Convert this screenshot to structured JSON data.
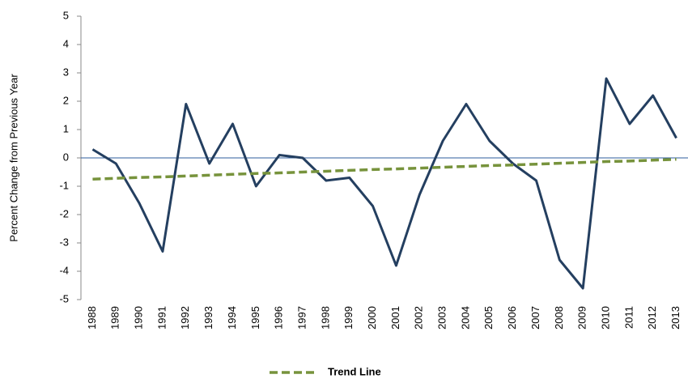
{
  "chart_data": {
    "type": "line",
    "y_label": "Percent Change from Previous Year",
    "categories": [
      "1988",
      "1989",
      "1990",
      "1991",
      "1992",
      "1993",
      "1994",
      "1995",
      "1996",
      "1997",
      "1998",
      "1999",
      "2000",
      "2001",
      "2002",
      "2003",
      "2004",
      "2005",
      "2006",
      "2007",
      "2008",
      "2009",
      "2010",
      "2011",
      "2012",
      "2013"
    ],
    "series": [
      {
        "color": "#243f60",
        "values": [
          0.3,
          -0.2,
          -1.6,
          -3.3,
          1.9,
          -0.2,
          1.2,
          -1.0,
          0.1,
          0.0,
          -0.8,
          -0.7,
          -1.7,
          -3.8,
          -1.3,
          0.6,
          1.9,
          0.6,
          -0.2,
          -0.8,
          -3.6,
          -4.6,
          2.8,
          1.2,
          2.2,
          0.7
        ]
      },
      {
        "name": "Trend Line",
        "color": "#77933c",
        "dashed": true,
        "values": [
          -0.75,
          -0.72,
          -0.69,
          -0.67,
          -0.64,
          -0.61,
          -0.58,
          -0.55,
          -0.53,
          -0.5,
          -0.47,
          -0.44,
          -0.41,
          -0.39,
          -0.36,
          -0.33,
          -0.3,
          -0.27,
          -0.25,
          -0.22,
          -0.19,
          -0.16,
          -0.13,
          -0.11,
          -0.08,
          -0.05
        ]
      }
    ],
    "ylim": [
      -5,
      5
    ],
    "yticks": [
      -5,
      -4,
      -3,
      -2,
      -1,
      0,
      1,
      2,
      3,
      4,
      5
    ],
    "grid": false,
    "legend": "bottom"
  }
}
